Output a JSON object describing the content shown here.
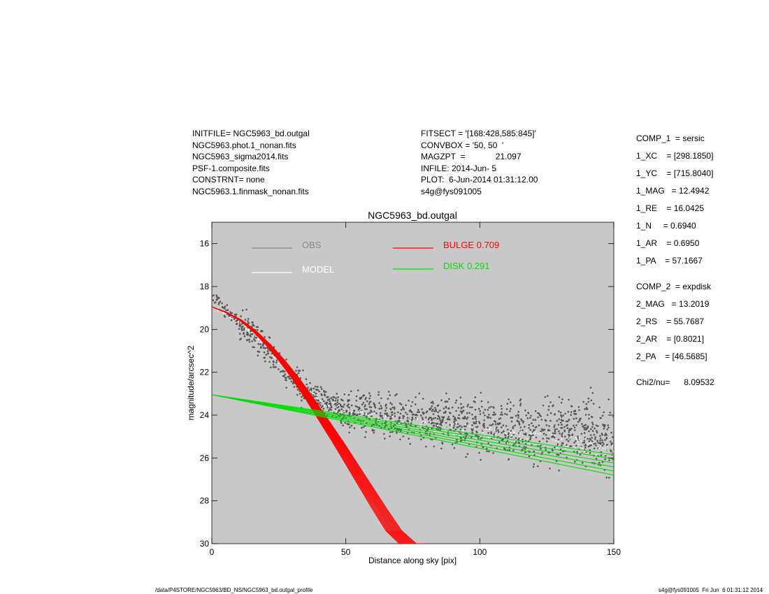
{
  "header_left": [
    "INITFILE= NGC5963_bd.outgal",
    "NGC5963.phot.1_nonan.fits",
    "NGC5963_sigma2014.fits",
    "PSF-1.composite.fits",
    "CONSTRNT= none",
    "NGC5963.1.finmask_nonan.fits"
  ],
  "header_mid": [
    "FITSECT = '[168:428,585:845]'",
    "CONVBOX = '50, 50  '",
    "MAGZPT  =             21.097",
    "INFILE: 2014-Jun- 5",
    "PLOT:  6-Jun-2014 01:31:12.00",
    "s4g@fys091005"
  ],
  "params": [
    {
      "text": "COMP_1  = sersic"
    },
    {
      "text": "1_XC    = [298.1850]"
    },
    {
      "text": "1_YC    = [715.8040]"
    },
    {
      "text": "1_MAG   = 12.4942"
    },
    {
      "text": "1_RE    = 16.0425"
    },
    {
      "text": "1_N     = 0.6940"
    },
    {
      "text": "1_AR    = 0.6950"
    },
    {
      "text": "1_PA    = 57.1667"
    },
    {
      "text": "COMP_2  = expdisk"
    },
    {
      "text": "2_MAG   = 13.2019"
    },
    {
      "text": "2_RS    = 55.7687"
    },
    {
      "text": "2_AR    = [0.8021]"
    },
    {
      "text": "2_PA    = [46.5685]"
    },
    {
      "text": "Chi2/nu=      8.09532"
    }
  ],
  "footer_left": "/data/P4STORE/NGC5963/BD_NS/NGC5963_bd.outgal_profile",
  "footer_right": "s4g@fys091005  Fri Jun  6 01:31:12 2014",
  "colors": {
    "plot_bg": "#c8c8c8",
    "obs": "#555555",
    "obs_legend": "#888888",
    "model": "#ffffff",
    "bulge": "#ff0000",
    "disk": "#00dd00"
  },
  "chart_data": {
    "type": "scatter",
    "title": "NGC5963_bd.outgal",
    "xlabel": "Distance along sky [pix]",
    "ylabel": "magnitude/arcsec^2",
    "xlim": [
      0,
      150
    ],
    "ylim": [
      30,
      15
    ],
    "y_inverted": true,
    "xticks": [
      0,
      50,
      100,
      150
    ],
    "yticks": [
      16,
      18,
      20,
      22,
      24,
      26,
      28,
      30
    ],
    "legend": [
      {
        "label": "OBS",
        "color": "#888888"
      },
      {
        "label": "MODEL",
        "color": "#ffffff"
      },
      {
        "label": "BULGE  0.709",
        "color": "#ff0000"
      },
      {
        "label": "DISK  0.291",
        "color": "#00dd00"
      }
    ],
    "series": [
      {
        "name": "OBS",
        "x": [
          0,
          5,
          10,
          15,
          20,
          25,
          30,
          35,
          40,
          45,
          50,
          60,
          70,
          80,
          90,
          100,
          110,
          120,
          130,
          140,
          150
        ],
        "y": [
          18.4,
          19.1,
          19.6,
          20.2,
          20.8,
          21.6,
          22.3,
          22.9,
          23.3,
          23.6,
          23.8,
          24.0,
          24.1,
          24.25,
          24.35,
          24.45,
          24.55,
          24.65,
          24.75,
          24.85,
          24.95
        ]
      },
      {
        "name": "MODEL",
        "x": [
          0,
          5,
          10,
          15,
          20,
          25,
          30,
          35,
          40,
          45,
          50,
          60,
          70,
          80,
          90,
          100,
          110,
          120,
          130,
          140,
          150
        ],
        "y": [
          18.95,
          19.2,
          19.6,
          20.15,
          20.8,
          21.5,
          22.2,
          22.8,
          23.25,
          23.6,
          23.85,
          24.15,
          24.35,
          24.5,
          24.65,
          24.8,
          24.95,
          25.1,
          25.25,
          25.45,
          25.6
        ]
      },
      {
        "name": "BULGE  0.709",
        "x": [
          0,
          5,
          10,
          15,
          20,
          25,
          30,
          35,
          40,
          45,
          50,
          55,
          60,
          65,
          70,
          73
        ],
        "y": [
          18.95,
          19.2,
          19.55,
          20.05,
          20.7,
          21.45,
          22.3,
          23.25,
          24.25,
          25.25,
          26.3,
          27.35,
          28.4,
          29.4,
          30.0,
          30.0
        ]
      },
      {
        "name": "DISK  0.291",
        "x": [
          0,
          150
        ],
        "y": [
          23.05,
          26.0
        ]
      }
    ]
  }
}
